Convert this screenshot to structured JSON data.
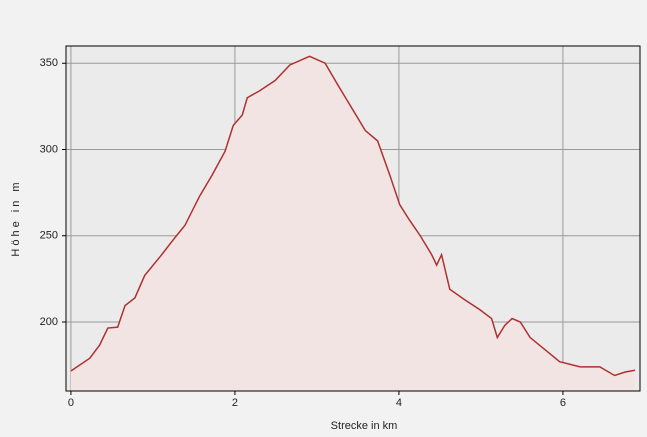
{
  "chart_data": {
    "type": "area",
    "x_label": "Strecke in km",
    "y_label": "Höhe in m",
    "x": [
      0,
      0.23,
      0.35,
      0.45,
      0.57,
      0.66,
      0.78,
      0.9,
      1.09,
      1.27,
      1.39,
      1.57,
      1.72,
      1.88,
      1.98,
      2.09,
      2.15,
      2.3,
      2.49,
      2.67,
      2.91,
      3.1,
      3.26,
      3.4,
      3.59,
      3.74,
      3.89,
      4.01,
      4.13,
      4.26,
      4.4,
      4.46,
      4.52,
      4.62,
      4.8,
      4.99,
      5.13,
      5.2,
      5.29,
      5.38,
      5.48,
      5.6,
      5.78,
      5.96,
      6.21,
      6.45,
      6.63,
      6.76,
      6.88
    ],
    "series": [
      {
        "name": "Höhe",
        "color": "#b03030",
        "values": [
          171.6,
          179,
          186.6,
          196.5,
          197,
          209.5,
          214,
          227,
          238,
          249,
          256,
          273,
          285,
          299,
          314,
          320,
          330,
          334,
          340,
          349,
          354,
          350,
          337,
          326,
          311,
          305,
          285,
          268,
          259,
          250,
          239,
          233,
          239,
          219,
          213,
          207,
          202,
          191,
          198,
          202,
          200,
          191,
          184,
          177,
          174,
          174,
          169,
          171,
          172
        ]
      }
    ],
    "fill_color": "#f3e4e4",
    "xlim": [
      -0.06,
      6.94
    ],
    "ylim": [
      160,
      360
    ],
    "xticks": [
      0,
      2,
      4,
      6
    ],
    "yticks": [
      200,
      250,
      300,
      350
    ],
    "grid": true
  }
}
